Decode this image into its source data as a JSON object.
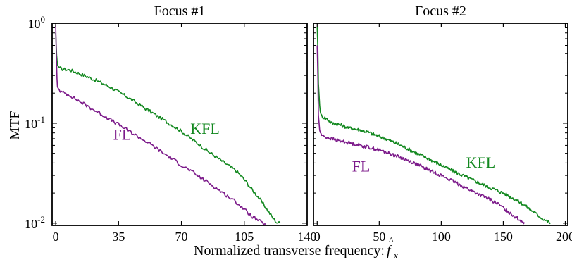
{
  "figure": {
    "xlabel": "Normalized transverse frequency: ",
    "xlabel_symbol": "f",
    "xlabel_symbol_sub": "x",
    "ylabel": "MTF"
  },
  "chart_data": [
    {
      "type": "line",
      "title": "Focus #1",
      "xlabel": "Normalized transverse frequency: f̂x",
      "ylabel": "MTF",
      "yscale": "log",
      "xlim": [
        -2,
        140
      ],
      "ylim": [
        0.0095,
        1.0
      ],
      "xticks": [
        0,
        35,
        70,
        105,
        140
      ],
      "xtick_labels": [
        "0",
        "35",
        "70",
        "105",
        "140"
      ],
      "yticks": [
        1,
        0.1,
        0.01
      ],
      "ytick_labels": [
        {
          "base": "10",
          "exp": "0"
        },
        {
          "base": "10",
          "exp": "-1"
        },
        {
          "base": "10",
          "exp": "-2"
        }
      ],
      "grid": false,
      "series": [
        {
          "name": "KFL",
          "color": "#12881f",
          "label_at": [
            75,
            0.078
          ],
          "x": [
            0,
            0.5,
            1,
            2,
            3,
            5,
            8,
            12,
            16,
            20,
            25,
            30,
            35,
            40,
            45,
            50,
            55,
            60,
            65,
            70,
            75,
            80,
            85,
            90,
            95,
            100,
            103,
            106,
            109,
            112,
            115,
            118,
            121,
            123,
            125
          ],
          "y": [
            0.8,
            0.48,
            0.38,
            0.36,
            0.35,
            0.345,
            0.34,
            0.32,
            0.3,
            0.28,
            0.255,
            0.232,
            0.205,
            0.182,
            0.16,
            0.14,
            0.123,
            0.108,
            0.095,
            0.083,
            0.071,
            0.061,
            0.052,
            0.045,
            0.039,
            0.034,
            0.03,
            0.026,
            0.022,
            0.019,
            0.016,
            0.0135,
            0.0112,
            0.0102,
            0.01
          ]
        },
        {
          "name": "FL",
          "color": "#7c1a8a",
          "label_at": [
            32,
            0.068
          ],
          "x": [
            0,
            0.3,
            0.7,
            1,
            2,
            3,
            5,
            8,
            12,
            16,
            20,
            25,
            30,
            35,
            40,
            45,
            50,
            55,
            60,
            65,
            70,
            75,
            80,
            85,
            90,
            95,
            100,
            103,
            106,
            109,
            112,
            115,
            117
          ],
          "y": [
            0.95,
            0.5,
            0.28,
            0.23,
            0.215,
            0.205,
            0.2,
            0.19,
            0.17,
            0.155,
            0.14,
            0.124,
            0.11,
            0.097,
            0.085,
            0.075,
            0.066,
            0.058,
            0.05,
            0.044,
            0.038,
            0.0335,
            0.029,
            0.0255,
            0.022,
            0.019,
            0.0165,
            0.0148,
            0.0132,
            0.0118,
            0.0108,
            0.0101,
            0.0098
          ]
        }
      ]
    },
    {
      "type": "line",
      "title": "Focus #2",
      "yscale": "log",
      "xlim": [
        -3,
        202
      ],
      "ylim": [
        0.0095,
        1.0
      ],
      "xticks": [
        0,
        50,
        100,
        150,
        200
      ],
      "xtick_labels": [
        "0",
        "50",
        "100",
        "150",
        "200"
      ],
      "yticks": [
        1,
        0.1,
        0.01
      ],
      "grid": false,
      "series": [
        {
          "name": "KFL",
          "color": "#12881f",
          "label_at": [
            120,
            0.036
          ],
          "x": [
            0,
            0.5,
            1,
            2,
            3,
            5,
            8,
            12,
            16,
            20,
            25,
            30,
            40,
            50,
            60,
            70,
            80,
            90,
            100,
            110,
            120,
            130,
            140,
            150,
            160,
            165,
            170,
            175,
            180,
            185,
            188
          ],
          "y": [
            0.92,
            0.55,
            0.25,
            0.15,
            0.12,
            0.115,
            0.11,
            0.1,
            0.098,
            0.095,
            0.09,
            0.088,
            0.082,
            0.074,
            0.066,
            0.058,
            0.05,
            0.044,
            0.038,
            0.033,
            0.029,
            0.0255,
            0.0225,
            0.02,
            0.0172,
            0.0158,
            0.0142,
            0.0128,
            0.0115,
            0.0105,
            0.01
          ]
        },
        {
          "name": "FL",
          "color": "#7c1a8a",
          "label_at": [
            28,
            0.033
          ],
          "x": [
            0,
            0.5,
            1,
            2,
            3,
            5,
            8,
            12,
            16,
            20,
            25,
            30,
            40,
            50,
            60,
            70,
            80,
            90,
            100,
            110,
            120,
            130,
            140,
            145,
            150,
            155,
            160,
            163,
            167
          ],
          "y": [
            0.6,
            0.3,
            0.12,
            0.085,
            0.078,
            0.074,
            0.072,
            0.07,
            0.067,
            0.066,
            0.064,
            0.062,
            0.058,
            0.054,
            0.049,
            0.044,
            0.039,
            0.034,
            0.03,
            0.026,
            0.0225,
            0.0195,
            0.017,
            0.0158,
            0.0142,
            0.0128,
            0.0115,
            0.0108,
            0.0102
          ]
        }
      ]
    }
  ]
}
